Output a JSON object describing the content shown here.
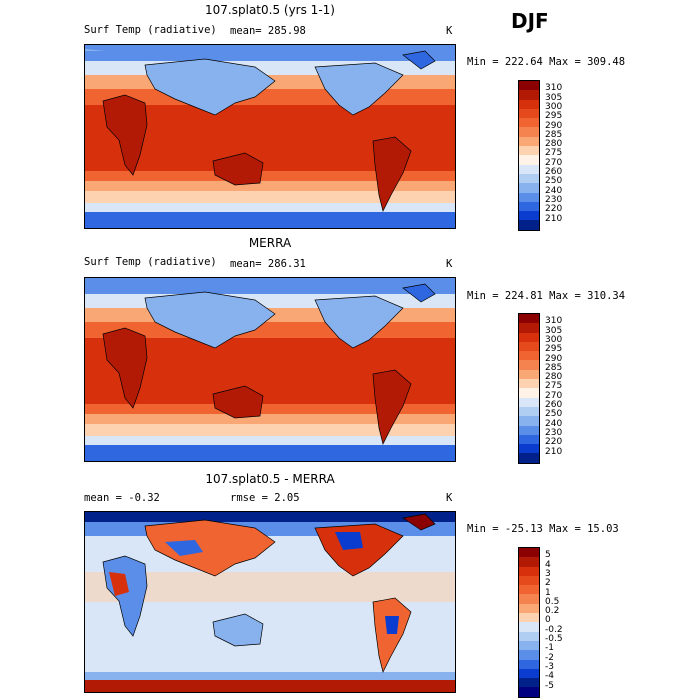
{
  "season": "DJF",
  "panels": [
    {
      "title": "107.splat0.5 (yrs 1-1)",
      "left_text": "Surf Temp (radiative)",
      "mid_text": "mean= 285.98",
      "units": "K",
      "stats": "Min = 222.64 Max = 309.48",
      "kind": "abs"
    },
    {
      "title": "MERRA",
      "left_text": "Surf Temp (radiative)",
      "mid_text": "mean= 286.31",
      "units": "K",
      "stats": "Min = 224.81 Max = 310.34",
      "kind": "abs"
    },
    {
      "title": "107.splat0.5 - MERRA",
      "left_text": "mean =   -0.32",
      "mid_text": "rmse =    2.05",
      "units": "K",
      "stats": "Min = -25.13 Max =  15.03",
      "kind": "diff"
    }
  ],
  "colorbar_abs": {
    "labels": [
      "310",
      "305",
      "300",
      "295",
      "290",
      "285",
      "280",
      "275",
      "270",
      "260",
      "250",
      "240",
      "230",
      "220",
      "210"
    ],
    "colors": [
      "#8b0000",
      "#b31a05",
      "#d6300c",
      "#e54a1c",
      "#f06432",
      "#f5834f",
      "#f9a775",
      "#fcd2b0",
      "#fef3e6",
      "#d8e6f7",
      "#b0cdf2",
      "#88b2ee",
      "#5a8ee8",
      "#2f67e0",
      "#0a3cd0",
      "#00218a"
    ]
  },
  "colorbar_diff": {
    "labels": [
      "5",
      "4",
      "3",
      "2",
      "1",
      "0.5",
      "0.2",
      "0",
      "-0.2",
      "-0.5",
      "-1",
      "-2",
      "-3",
      "-4",
      "-5"
    ],
    "colors": [
      "#8b0000",
      "#b31a05",
      "#d6300c",
      "#e54a1c",
      "#f06432",
      "#f5834f",
      "#f9a775",
      "#fcd2b0",
      "#d8e6f7",
      "#b0cdf2",
      "#88b2ee",
      "#5a8ee8",
      "#2f67e0",
      "#0a3cd0",
      "#00218a",
      "#000080"
    ]
  }
}
